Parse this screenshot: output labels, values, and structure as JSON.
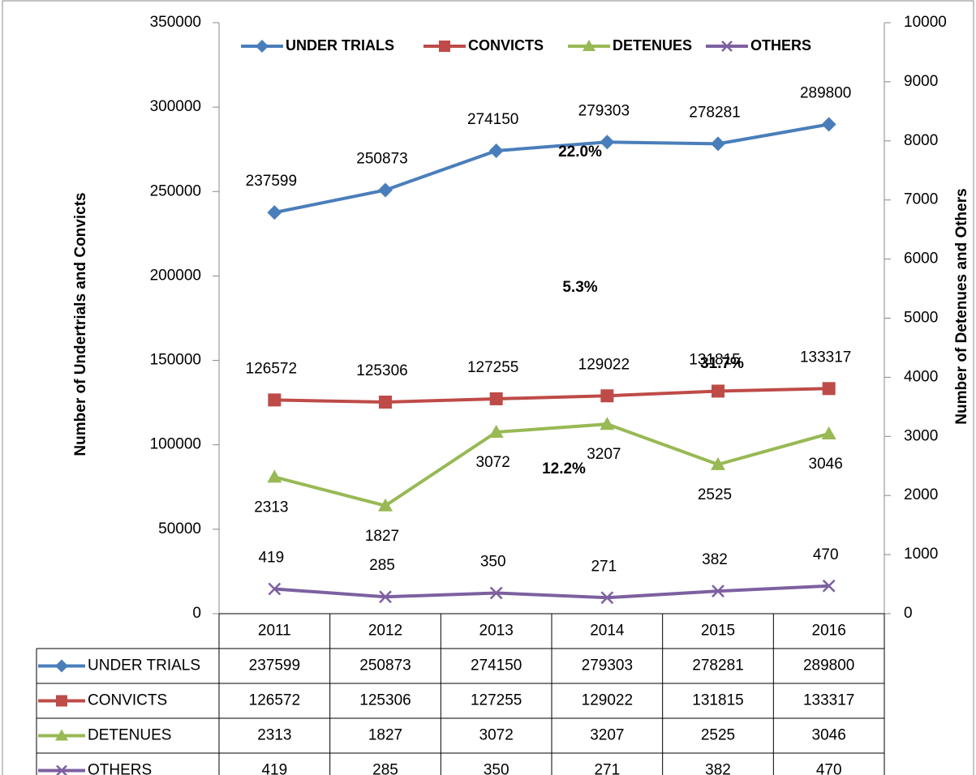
{
  "chart_data": {
    "type": "line",
    "ylabel": "Number of Undertrials and Convicts",
    "y2label": "Number of Detenues and Others",
    "categories": [
      "2011",
      "2012",
      "2013",
      "2014",
      "2015",
      "2016"
    ],
    "series": [
      {
        "name": "UNDER TRIALS",
        "color": "#4a7ebb",
        "marker": "diamond",
        "values": [
          237599,
          250873,
          274150,
          279303,
          278281,
          289800
        ]
      },
      {
        "name": "CONVICTS",
        "color": "#be4b48",
        "marker": "square",
        "values": [
          126572,
          125306,
          127255,
          129022,
          131815,
          133317
        ]
      },
      {
        "name": "DETENUES",
        "color": "#98b954",
        "marker": "triangle",
        "axis": "y2",
        "values": [
          2313,
          1827,
          3072,
          3207,
          2525,
          3046
        ]
      },
      {
        "name": "OTHERS",
        "color": "#7d60a0",
        "marker": "x",
        "axis": "y2",
        "values": [
          419,
          285,
          350,
          271,
          382,
          470
        ]
      }
    ],
    "annotations": [
      "22.0%",
      "5.3%",
      "31.7%",
      "12.2%"
    ],
    "ylim": [
      0,
      350000
    ],
    "yticks": [
      0,
      50000,
      100000,
      150000,
      200000,
      250000,
      300000,
      350000
    ],
    "y2lim": [
      0,
      10000
    ],
    "y2ticks": [
      0,
      1000,
      2000,
      3000,
      4000,
      5000,
      6000,
      7000,
      8000,
      9000,
      10000
    ],
    "legend": "top",
    "grid": false,
    "data_table": true
  }
}
